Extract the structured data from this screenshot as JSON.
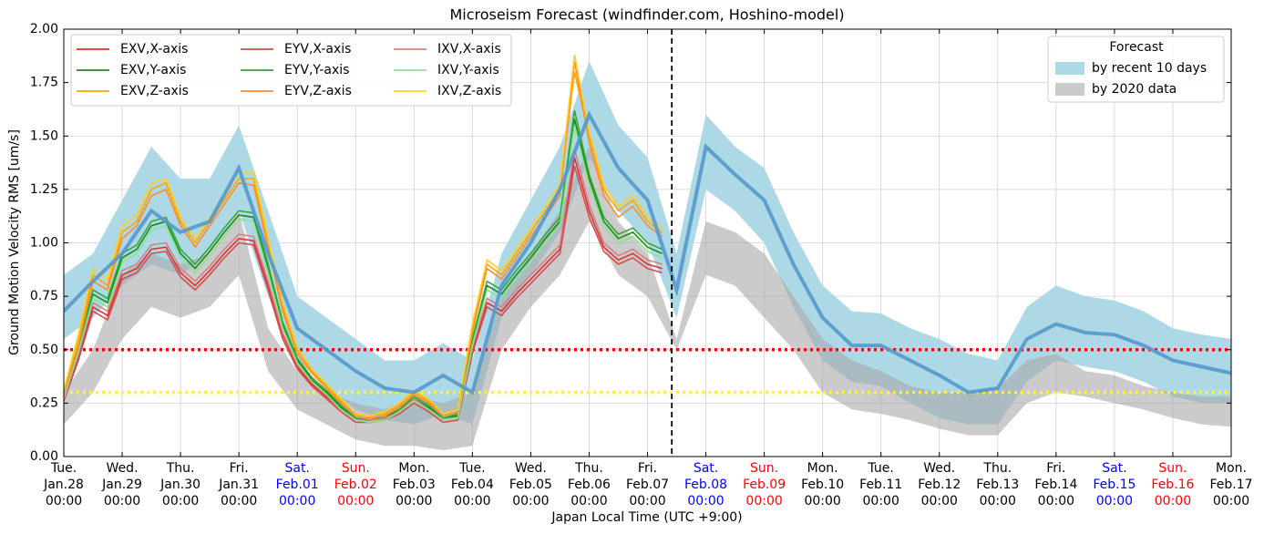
{
  "chart_data": {
    "type": "line",
    "title": "Microseism Forecast (windfinder.com, Hoshino-model)",
    "ylabel": "Ground Motion Velocity RMS [um/s]",
    "xlabel": "Japan Local Time (UTC +9:00)",
    "ylim": [
      0,
      2
    ],
    "yticks": [
      {
        "value": 0,
        "label": "0.00"
      },
      {
        "value": 0.25,
        "label": "0.25"
      },
      {
        "value": 0.5,
        "label": "0.50"
      },
      {
        "value": 0.75,
        "label": "0.75"
      },
      {
        "value": 1,
        "label": "1.00"
      },
      {
        "value": 1.25,
        "label": "1.25"
      },
      {
        "value": 1.5,
        "label": "1.50"
      },
      {
        "value": 1.75,
        "label": "1.75"
      },
      {
        "value": 2,
        "label": "2.00"
      }
    ],
    "grid": true,
    "xticks": [
      {
        "day": "Tue.",
        "date": "Jan.28",
        "time": "00:00",
        "color": "#000000"
      },
      {
        "day": "Wed.",
        "date": "Jan.29",
        "time": "00:00",
        "color": "#000000"
      },
      {
        "day": "Thu.",
        "date": "Jan.30",
        "time": "00:00",
        "color": "#000000"
      },
      {
        "day": "Fri.",
        "date": "Jan.31",
        "time": "00:00",
        "color": "#000000"
      },
      {
        "day": "Sat.",
        "date": "Feb.01",
        "time": "00:00",
        "color": "#0000ff"
      },
      {
        "day": "Sun.",
        "date": "Feb.02",
        "time": "00:00",
        "color": "#ff0000"
      },
      {
        "day": "Mon.",
        "date": "Feb.03",
        "time": "00:00",
        "color": "#000000"
      },
      {
        "day": "Tue.",
        "date": "Feb.04",
        "time": "00:00",
        "color": "#000000"
      },
      {
        "day": "Wed.",
        "date": "Feb.05",
        "time": "00:00",
        "color": "#000000"
      },
      {
        "day": "Thu.",
        "date": "Feb.06",
        "time": "00:00",
        "color": "#000000"
      },
      {
        "day": "Fri.",
        "date": "Feb.07",
        "time": "00:00",
        "color": "#000000"
      },
      {
        "day": "Sat.",
        "date": "Feb.08",
        "time": "00:00",
        "color": "#0000ff"
      },
      {
        "day": "Sun.",
        "date": "Feb.09",
        "time": "00:00",
        "color": "#ff0000"
      },
      {
        "day": "Mon.",
        "date": "Feb.10",
        "time": "00:00",
        "color": "#000000"
      },
      {
        "day": "Tue.",
        "date": "Feb.11",
        "time": "00:00",
        "color": "#000000"
      },
      {
        "day": "Wed.",
        "date": "Feb.12",
        "time": "00:00",
        "color": "#000000"
      },
      {
        "day": "Thu.",
        "date": "Feb.13",
        "time": "00:00",
        "color": "#000000"
      },
      {
        "day": "Fri.",
        "date": "Feb.14",
        "time": "00:00",
        "color": "#000000"
      },
      {
        "day": "Sat.",
        "date": "Feb.15",
        "time": "00:00",
        "color": "#0000ff"
      },
      {
        "day": "Sun.",
        "date": "Feb.16",
        "time": "00:00",
        "color": "#ff0000"
      },
      {
        "day": "Mon.",
        "date": "Feb.17",
        "time": "00:00",
        "color": "#000000"
      }
    ],
    "now": "Feb.07 10:00",
    "hlines": [
      {
        "value": 0.5,
        "color": "#ff0000"
      },
      {
        "value": 0.3,
        "color": "#ffff00"
      }
    ],
    "x": [
      "Jan.28 00:00",
      "Jan.28 06:00",
      "Jan.28 12:00",
      "Jan.28 18:00",
      "Jan.29 00:00",
      "Jan.29 06:00",
      "Jan.29 12:00",
      "Jan.29 18:00",
      "Jan.30 00:00",
      "Jan.30 06:00",
      "Jan.30 12:00",
      "Jan.30 18:00",
      "Jan.31 00:00",
      "Jan.31 06:00",
      "Jan.31 12:00",
      "Jan.31 18:00",
      "Feb.01 00:00",
      "Feb.01 06:00",
      "Feb.01 12:00",
      "Feb.01 18:00",
      "Feb.02 00:00",
      "Feb.02 06:00",
      "Feb.02 12:00",
      "Feb.02 18:00",
      "Feb.03 00:00",
      "Feb.03 06:00",
      "Feb.03 12:00",
      "Feb.03 18:00",
      "Feb.04 00:00",
      "Feb.04 06:00",
      "Feb.04 12:00",
      "Feb.04 18:00",
      "Feb.05 00:00",
      "Feb.05 06:00",
      "Feb.05 12:00",
      "Feb.05 18:00",
      "Feb.06 00:00",
      "Feb.06 06:00",
      "Feb.06 12:00",
      "Feb.06 18:00",
      "Feb.07 00:00",
      "Feb.07 06:00"
    ],
    "series": [
      {
        "name": "EXV,X-axis",
        "color": "#e03030",
        "values": [
          0.27,
          0.47,
          0.7,
          0.66,
          0.85,
          0.88,
          0.97,
          0.98,
          0.86,
          0.8,
          0.87,
          0.95,
          1.02,
          1.01,
          0.8,
          0.57,
          0.42,
          0.34,
          0.28,
          0.22,
          0.17,
          0.16,
          0.17,
          0.21,
          0.26,
          0.22,
          0.17,
          0.18,
          0.5,
          0.72,
          0.68,
          0.76,
          0.83,
          0.9,
          0.97,
          1.4,
          1.15,
          0.98,
          0.92,
          0.95,
          0.9,
          0.88
        ]
      },
      {
        "name": "EXV,Y-axis",
        "color": "#1a8a1a",
        "values": [
          0.28,
          0.5,
          0.76,
          0.72,
          0.93,
          0.97,
          1.08,
          1.1,
          0.95,
          0.88,
          0.96,
          1.05,
          1.13,
          1.12,
          0.88,
          0.62,
          0.45,
          0.36,
          0.3,
          0.23,
          0.18,
          0.17,
          0.18,
          0.22,
          0.27,
          0.23,
          0.18,
          0.19,
          0.54,
          0.8,
          0.76,
          0.85,
          0.93,
          1.02,
          1.1,
          1.58,
          1.3,
          1.1,
          1.02,
          1.05,
          0.98,
          0.95
        ]
      },
      {
        "name": "EXV,Z-axis",
        "color": "#ffa500",
        "values": [
          0.3,
          0.55,
          0.85,
          0.8,
          1.05,
          1.1,
          1.25,
          1.28,
          1.1,
          1.0,
          1.1,
          1.2,
          1.3,
          1.3,
          1.0,
          0.7,
          0.5,
          0.4,
          0.33,
          0.26,
          0.2,
          0.19,
          0.2,
          0.24,
          0.3,
          0.26,
          0.2,
          0.22,
          0.6,
          0.9,
          0.85,
          0.95,
          1.05,
          1.15,
          1.25,
          1.8,
          1.5,
          1.25,
          1.15,
          1.2,
          1.1,
          1.05
        ]
      },
      {
        "name": "EYV,X-axis",
        "color": "#d05050",
        "values": [
          0.26,
          0.45,
          0.68,
          0.64,
          0.83,
          0.86,
          0.95,
          0.96,
          0.84,
          0.78,
          0.85,
          0.93,
          1.0,
          0.99,
          0.78,
          0.55,
          0.41,
          0.33,
          0.27,
          0.21,
          0.16,
          0.16,
          0.17,
          0.2,
          0.25,
          0.21,
          0.16,
          0.17,
          0.48,
          0.7,
          0.66,
          0.74,
          0.81,
          0.88,
          0.95,
          1.36,
          1.12,
          0.96,
          0.9,
          0.93,
          0.88,
          0.86
        ]
      },
      {
        "name": "EYV,Y-axis",
        "color": "#33aa33",
        "values": [
          0.29,
          0.51,
          0.78,
          0.74,
          0.95,
          0.99,
          1.1,
          1.12,
          0.97,
          0.9,
          0.98,
          1.07,
          1.15,
          1.14,
          0.9,
          0.63,
          0.46,
          0.37,
          0.31,
          0.24,
          0.18,
          0.17,
          0.19,
          0.22,
          0.28,
          0.24,
          0.18,
          0.2,
          0.55,
          0.82,
          0.78,
          0.87,
          0.95,
          1.04,
          1.12,
          1.62,
          1.32,
          1.12,
          1.04,
          1.07,
          1.0,
          0.97
        ]
      },
      {
        "name": "EYV,Z-axis",
        "color": "#ff8c30",
        "values": [
          0.29,
          0.52,
          0.82,
          0.78,
          1.02,
          1.08,
          1.22,
          1.25,
          1.08,
          0.98,
          1.08,
          1.18,
          1.28,
          1.27,
          0.98,
          0.68,
          0.48,
          0.39,
          0.32,
          0.25,
          0.19,
          0.18,
          0.19,
          0.23,
          0.29,
          0.25,
          0.19,
          0.21,
          0.58,
          0.88,
          0.83,
          0.93,
          1.03,
          1.12,
          1.22,
          1.85,
          1.47,
          1.22,
          1.12,
          1.17,
          1.08,
          1.03
        ]
      },
      {
        "name": "IXV,X-axis",
        "color": "#d88080",
        "values": [
          0.28,
          0.48,
          0.72,
          0.68,
          0.87,
          0.9,
          0.99,
          1.0,
          0.88,
          0.82,
          0.89,
          0.97,
          1.04,
          1.03,
          0.82,
          0.58,
          0.43,
          0.35,
          0.29,
          0.22,
          0.17,
          0.17,
          0.18,
          0.21,
          0.27,
          0.22,
          0.17,
          0.18,
          0.51,
          0.74,
          0.7,
          0.78,
          0.85,
          0.92,
          0.99,
          1.44,
          1.18,
          1.0,
          0.94,
          0.97,
          0.92,
          0.9
        ]
      },
      {
        "name": "IXV,Y-axis",
        "color": "#90e090",
        "values": [
          0.27,
          0.49,
          0.74,
          0.7,
          0.91,
          0.95,
          1.06,
          1.08,
          0.93,
          0.86,
          0.94,
          1.03,
          1.11,
          1.1,
          0.86,
          0.6,
          0.44,
          0.35,
          0.29,
          0.22,
          0.17,
          0.16,
          0.17,
          0.21,
          0.26,
          0.22,
          0.17,
          0.18,
          0.52,
          0.78,
          0.74,
          0.83,
          0.91,
          1.0,
          1.08,
          1.55,
          1.27,
          1.08,
          1.0,
          1.03,
          0.96,
          0.93
        ]
      },
      {
        "name": "IXV,Z-axis",
        "color": "#ffd020",
        "values": [
          0.31,
          0.57,
          0.88,
          0.83,
          1.08,
          1.13,
          1.28,
          1.3,
          1.12,
          1.02,
          1.12,
          1.22,
          1.33,
          1.33,
          1.02,
          0.72,
          0.51,
          0.41,
          0.34,
          0.27,
          0.2,
          0.19,
          0.21,
          0.25,
          0.31,
          0.27,
          0.2,
          0.22,
          0.62,
          0.92,
          0.87,
          0.97,
          1.07,
          1.17,
          1.27,
          1.88,
          1.52,
          1.27,
          1.17,
          1.22,
          1.12,
          1.07
        ]
      }
    ],
    "forecast_legend_title": "Forecast",
    "forecast": {
      "color": "#5599cc",
      "x": [
        "Jan.28 00:00",
        "Jan.28 12:00",
        "Jan.29 00:00",
        "Jan.29 12:00",
        "Jan.30 00:00",
        "Jan.30 12:00",
        "Jan.31 00:00",
        "Jan.31 12:00",
        "Feb.01 00:00",
        "Feb.01 12:00",
        "Feb.02 00:00",
        "Feb.02 12:00",
        "Feb.03 00:00",
        "Feb.03 12:00",
        "Feb.04 00:00",
        "Feb.04 12:00",
        "Feb.05 00:00",
        "Feb.05 12:00",
        "Feb.06 00:00",
        "Feb.06 12:00",
        "Feb.07 00:00",
        "Feb.07 12:00",
        "Feb.08 00:00",
        "Feb.08 12:00",
        "Feb.09 00:00",
        "Feb.09 12:00",
        "Feb.10 00:00",
        "Feb.10 12:00",
        "Feb.11 00:00",
        "Feb.11 12:00",
        "Feb.12 00:00",
        "Feb.12 12:00",
        "Feb.13 00:00",
        "Feb.13 12:00",
        "Feb.14 00:00",
        "Feb.14 12:00",
        "Feb.15 00:00",
        "Feb.15 12:00",
        "Feb.16 00:00",
        "Feb.16 12:00",
        "Feb.17 00:00"
      ],
      "values": [
        0.68,
        0.82,
        0.95,
        1.15,
        1.05,
        1.1,
        1.35,
        0.95,
        0.6,
        0.5,
        0.4,
        0.32,
        0.3,
        0.38,
        0.3,
        0.8,
        1.0,
        1.25,
        1.6,
        1.35,
        1.2,
        0.78,
        1.45,
        1.32,
        1.2,
        0.9,
        0.65,
        0.52,
        0.52,
        0.45,
        0.38,
        0.3,
        0.32,
        0.55,
        0.62,
        0.58,
        0.57,
        0.52,
        0.45,
        0.42,
        0.39
      ],
      "bands": [
        {
          "name": "by recent 10 days",
          "color": "#add8e6",
          "upper": [
            0.85,
            0.95,
            1.2,
            1.45,
            1.3,
            1.3,
            1.55,
            1.15,
            0.75,
            0.65,
            0.55,
            0.45,
            0.45,
            0.53,
            0.45,
            0.95,
            1.2,
            1.45,
            1.85,
            1.55,
            1.4,
            0.95,
            1.6,
            1.45,
            1.35,
            1.05,
            0.8,
            0.68,
            0.67,
            0.6,
            0.55,
            0.48,
            0.45,
            0.7,
            0.8,
            0.75,
            0.73,
            0.68,
            0.6,
            0.57,
            0.55
          ],
          "lower": [
            0.55,
            0.65,
            0.8,
            0.9,
            0.85,
            0.95,
            1.15,
            0.75,
            0.45,
            0.33,
            0.22,
            0.17,
            0.15,
            0.2,
            0.15,
            0.65,
            0.85,
            1.05,
            1.4,
            1.15,
            1.0,
            0.65,
            1.25,
            1.15,
            1.0,
            0.7,
            0.45,
            0.35,
            0.33,
            0.25,
            0.18,
            0.15,
            0.15,
            0.35,
            0.45,
            0.42,
            0.4,
            0.35,
            0.28,
            0.25,
            0.25
          ]
        },
        {
          "name": "by 2020 data",
          "color": "#a9a9a9",
          "upper": [
            0.3,
            0.5,
            0.85,
            0.95,
            0.9,
            0.95,
            1.15,
            0.6,
            0.4,
            0.3,
            0.25,
            0.22,
            0.28,
            0.25,
            0.3,
            0.75,
            0.95,
            1.15,
            1.45,
            1.1,
            0.95,
            0.55,
            1.1,
            1.05,
            0.95,
            0.75,
            0.55,
            0.45,
            0.4,
            0.33,
            0.3,
            0.3,
            0.32,
            0.45,
            0.48,
            0.4,
            0.38,
            0.33,
            0.3,
            0.28,
            0.28
          ],
          "lower": [
            0.15,
            0.3,
            0.55,
            0.7,
            0.65,
            0.7,
            0.85,
            0.4,
            0.22,
            0.15,
            0.08,
            0.05,
            0.05,
            0.03,
            0.05,
            0.5,
            0.7,
            0.85,
            1.1,
            0.85,
            0.75,
            0.5,
            0.85,
            0.8,
            0.65,
            0.5,
            0.3,
            0.22,
            0.2,
            0.17,
            0.13,
            0.1,
            0.1,
            0.25,
            0.3,
            0.28,
            0.25,
            0.22,
            0.18,
            0.15,
            0.14
          ]
        }
      ]
    }
  }
}
